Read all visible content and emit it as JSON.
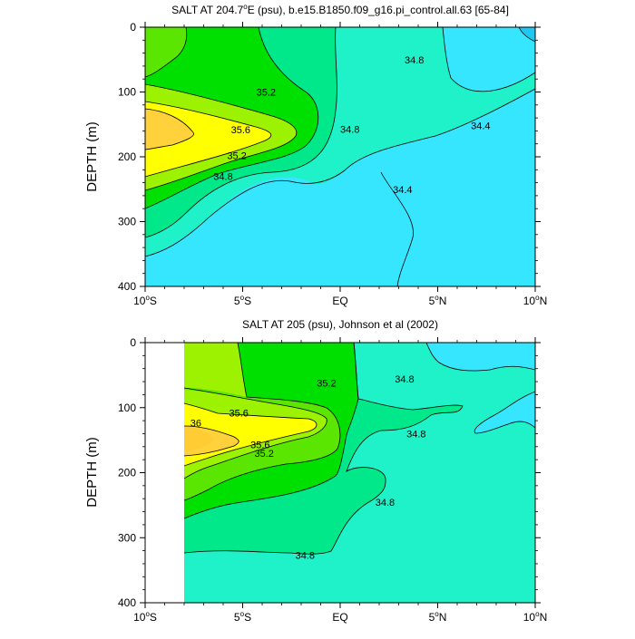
{
  "chart_data": [
    {
      "type": "contour",
      "title": "SALT AT 204.7°E (psu), b.e15.B1850.f09_g16.pi_control.all.63 [65-84]",
      "title_parts": {
        "pre": "SALT AT 204.7",
        "sup": "o",
        "post": "E (psu), b.e15.B1850.f09_g16.pi_control.all.63 [65-84]"
      },
      "ylabel": "DEPTH (m)",
      "xlim": [
        -10,
        10
      ],
      "ylim": [
        400,
        0
      ],
      "yticks": [
        "0",
        "100",
        "200",
        "300",
        "400"
      ],
      "xticks": [
        {
          "num": "10",
          "hemi": "S"
        },
        {
          "num": "5",
          "hemi": "S"
        },
        {
          "text": "EQ"
        },
        {
          "num": "5",
          "hemi": "N"
        },
        {
          "num": "10",
          "hemi": "N"
        }
      ],
      "data_xlim": [
        -10,
        10
      ],
      "fill_levels": [
        {
          "value": 34.2,
          "color": "#1ec8f0"
        },
        {
          "value": 34.4,
          "color": "#36e6ff"
        },
        {
          "value": 34.8,
          "color": "#1ff2c8"
        },
        {
          "value": 35.0,
          "color": "#00e88a"
        },
        {
          "value": 35.2,
          "color": "#00e000"
        },
        {
          "value": 35.4,
          "color": "#5ae600"
        },
        {
          "value": 35.6,
          "color": "#9cf200"
        },
        {
          "value": 35.8,
          "color": "#ffff00"
        },
        {
          "value": 36.0,
          "color": "#ffd23c"
        }
      ],
      "contour_labels": [
        {
          "text": "35.2",
          "x": -3.8,
          "y": 100
        },
        {
          "text": "35.6",
          "x": -5.1,
          "y": 158
        },
        {
          "text": "35.2",
          "x": -5.3,
          "y": 198
        },
        {
          "text": "34.8",
          "x": -6.0,
          "y": 230
        },
        {
          "text": "34.8",
          "x": 0.5,
          "y": 157
        },
        {
          "text": "34.8",
          "x": 3.8,
          "y": 50
        },
        {
          "text": "34.4",
          "x": 7.2,
          "y": 152
        },
        {
          "text": "34.4",
          "x": 3.2,
          "y": 250
        }
      ]
    },
    {
      "type": "contour",
      "title": "SALT AT 205 (psu), Johnson et al (2002)",
      "ylabel": "DEPTH (m)",
      "xlim": [
        -10,
        10
      ],
      "ylim": [
        400,
        0
      ],
      "yticks": [
        "0",
        "100",
        "200",
        "300",
        "400"
      ],
      "xticks": [
        {
          "num": "10",
          "hemi": "S"
        },
        {
          "num": "5",
          "hemi": "S"
        },
        {
          "text": "EQ"
        },
        {
          "num": "5",
          "hemi": "N"
        },
        {
          "num": "10",
          "hemi": "N"
        }
      ],
      "data_xlim": [
        -8,
        10
      ],
      "contour_labels": [
        {
          "text": "35.2",
          "x": -0.7,
          "y": 62
        },
        {
          "text": "34.8",
          "x": 3.3,
          "y": 56
        },
        {
          "text": "35.6",
          "x": -5.2,
          "y": 108
        },
        {
          "text": "36",
          "x": -7.4,
          "y": 123
        },
        {
          "text": "34.8",
          "x": 3.9,
          "y": 140
        },
        {
          "text": "35.6",
          "x": -4.1,
          "y": 157
        },
        {
          "text": "35.2",
          "x": -3.9,
          "y": 170
        },
        {
          "text": "34.8",
          "x": 2.3,
          "y": 245
        },
        {
          "text": "34.8",
          "x": -1.8,
          "y": 327
        }
      ]
    }
  ]
}
